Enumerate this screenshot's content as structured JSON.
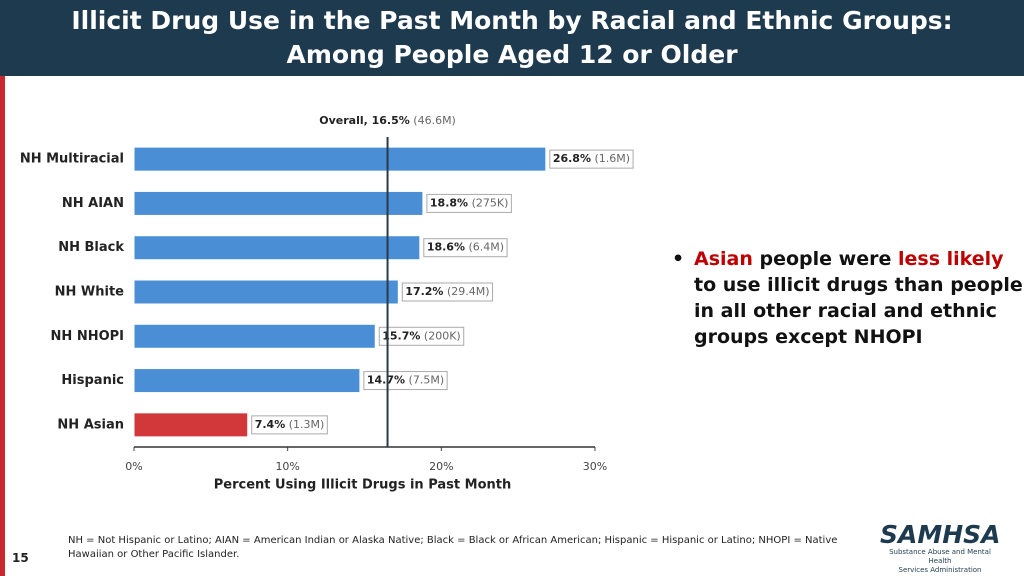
{
  "slide": {
    "title_lines": [
      "Illicit Drug Use in the Past Month by Racial and Ethnic Groups:",
      "Among People Aged 12 or Older"
    ],
    "bullet": [
      {
        "text": "Asian",
        "color": "#c00000"
      },
      {
        "text": "people were"
      },
      {
        "text": "less likely",
        "color": "#c00000"
      },
      {
        "text": "to use illicit drugs than people in all other racial and ethnic groups except NHOPI"
      }
    ],
    "footnote": "NH = Not Hispanic or Latino; AIAN = American Indian or Alaska Native; Black = Black or African American; Hispanic = Hispanic or Latino; NHOPI = Native Hawaiian or Other Pacific Islander.",
    "page_number": "15",
    "logo": {
      "name": "SAMHSA",
      "line1": "Substance Abuse and Mental Health",
      "line2": "Services Administration"
    }
  },
  "chart_data": {
    "type": "hbar",
    "categories": [
      "NH Multiracial",
      "NH AIAN",
      "NH Black",
      "NH White",
      "NH NHOPI",
      "Hispanic",
      "NH Asian"
    ],
    "values": [
      26.8,
      18.8,
      18.6,
      17.2,
      15.7,
      14.7,
      7.4
    ],
    "value_labels": [
      "26.8%",
      "18.8%",
      "18.6%",
      "17.2%",
      "15.7%",
      "14.7%",
      "7.4%"
    ],
    "count_labels": [
      "(1.6M)",
      "(275K)",
      "(6.4M)",
      "(29.4M)",
      "(200K)",
      "(7.5M)",
      "(1.3M)"
    ],
    "colors": [
      "#4a8fd6",
      "#4a8fd6",
      "#4a8fd6",
      "#4a8fd6",
      "#4a8fd6",
      "#4a8fd6",
      "#d2373a"
    ],
    "reference": {
      "value": 16.5,
      "label": "Overall, 16.5%",
      "count": "(46.6M)"
    },
    "xlim": [
      0,
      30
    ],
    "xticks": [
      {
        "value": 0,
        "label": "0%"
      },
      {
        "value": 10,
        "label": "10%"
      },
      {
        "value": 20,
        "label": "20%"
      },
      {
        "value": 30,
        "label": "30%"
      }
    ],
    "x_label": "Percent Using Illicit Drugs in Past Month"
  }
}
